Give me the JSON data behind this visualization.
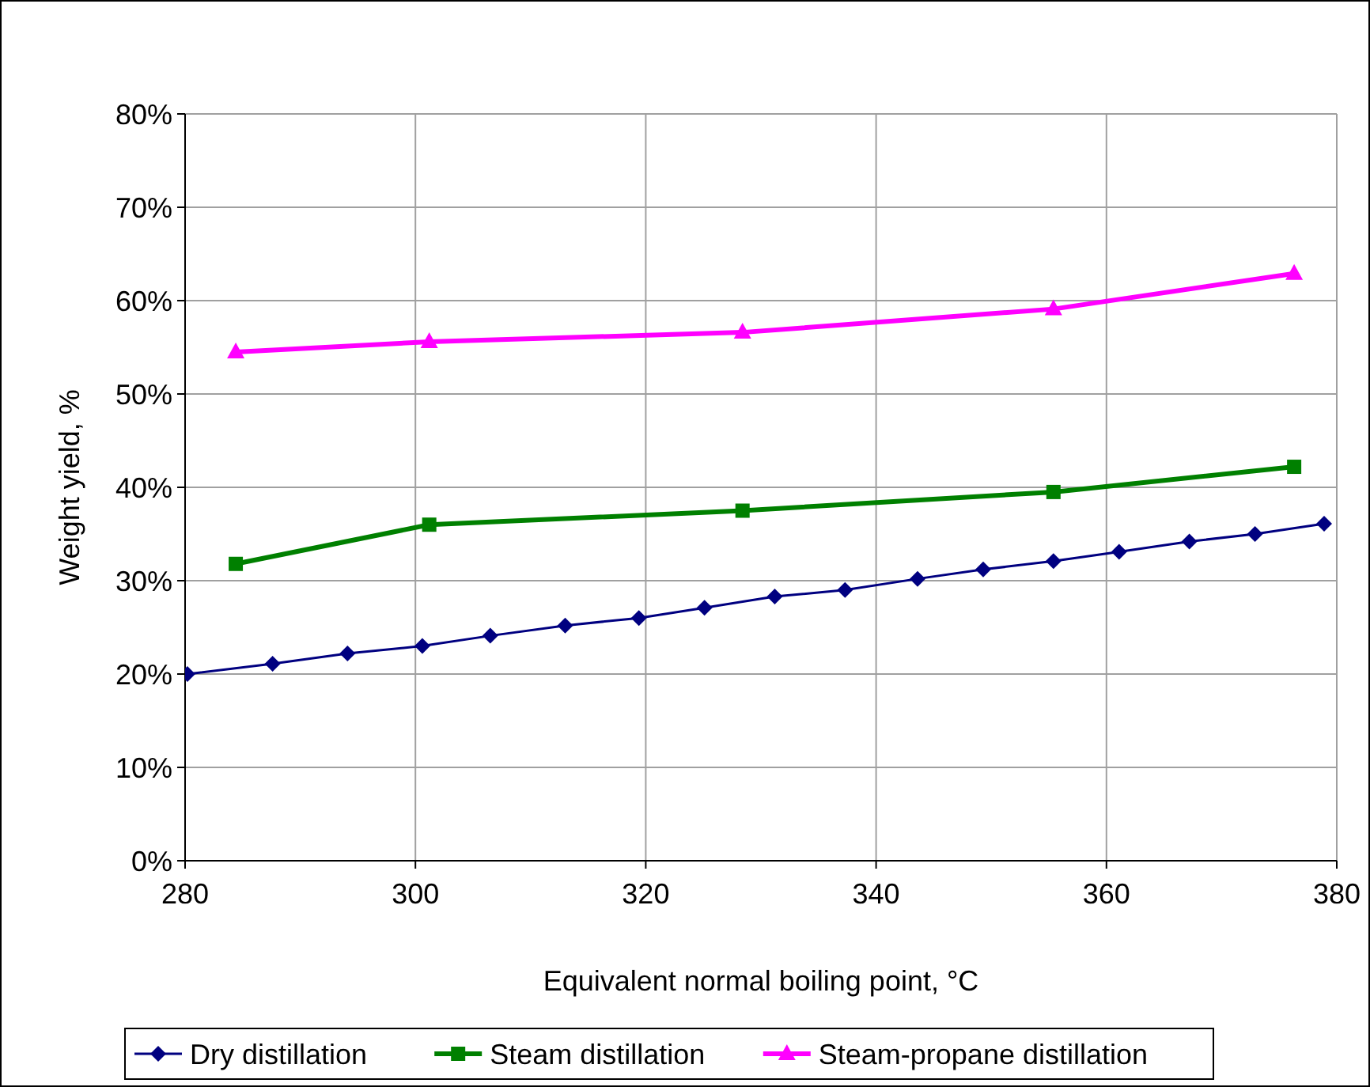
{
  "chart_data": {
    "type": "line",
    "xlabel": "Equivalent normal boiling point, °C",
    "ylabel": "Weight yield, %",
    "xlim": [
      280,
      380
    ],
    "xticks": [
      280,
      300,
      320,
      340,
      360,
      380
    ],
    "ylim": [
      0,
      80
    ],
    "yticks": [
      {
        "value": 0,
        "label": "0%"
      },
      {
        "value": 10,
        "label": "10%"
      },
      {
        "value": 20,
        "label": "20%"
      },
      {
        "value": 30,
        "label": "30%"
      },
      {
        "value": 40,
        "label": "40%"
      },
      {
        "value": 50,
        "label": "50%"
      },
      {
        "value": 60,
        "label": "60%"
      },
      {
        "value": 70,
        "label": "70%"
      },
      {
        "value": 80,
        "label": "80%"
      }
    ],
    "grid": true,
    "legend": "bottom",
    "series": [
      {
        "name": "Dry distillation",
        "color": "#000080",
        "marker": "diamond",
        "x": [
          280.2,
          287.6,
          294.1,
          300.6,
          306.5,
          313.0,
          319.4,
          325.1,
          331.2,
          337.3,
          343.6,
          349.3,
          355.4,
          361.1,
          367.2,
          372.9,
          378.9
        ],
        "values": [
          20,
          21.1,
          22.2,
          23,
          24.1,
          25.2,
          26,
          27.1,
          28.3,
          29,
          30.2,
          31.2,
          32.1,
          33.1,
          34.2,
          35,
          36.1
        ]
      },
      {
        "name": "Steam distillation",
        "color": "#008000",
        "marker": "square",
        "x": [
          284.4,
          301.2,
          328.4,
          355.4,
          376.3
        ],
        "values": [
          31.8,
          36.0,
          37.5,
          39.5,
          42.2
        ]
      },
      {
        "name": "Steam-propane distillation",
        "color": "#ff00ff",
        "marker": "triangle",
        "x": [
          284.4,
          301.2,
          328.4,
          355.4,
          376.3
        ],
        "values": [
          54.5,
          55.6,
          56.6,
          59.1,
          62.9
        ]
      }
    ]
  }
}
